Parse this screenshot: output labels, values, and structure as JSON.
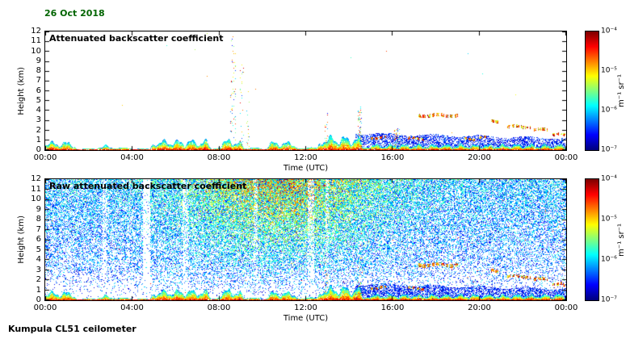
{
  "header": {
    "date": "26 Oct 2018"
  },
  "footer": {
    "instrument": "Kumpula CL51 ceilometer"
  },
  "colors": {
    "date_text": "#006400",
    "axis": "#000000",
    "background": "#ffffff",
    "colormap": "jet"
  },
  "render": {
    "seed": 1337
  },
  "chart_data": [
    {
      "type": "heatmap",
      "style": "processed",
      "title": "Attenuated backscatter coefficient",
      "xlabel": "Time (UTC)",
      "ylabel": "Height (km)",
      "x_ticks": [
        "00:00",
        "04:00",
        "08:00",
        "12:00",
        "16:00",
        "20:00",
        "00:00"
      ],
      "x_range_hours": [
        0,
        24
      ],
      "y_ticks": [
        0,
        1,
        2,
        3,
        4,
        5,
        6,
        7,
        8,
        9,
        10,
        11,
        12
      ],
      "y_range_km": [
        0,
        12
      ],
      "colorbar": {
        "scale": "log",
        "min": 1e-07,
        "max": 0.0001,
        "tick_labels": [
          "10⁻⁴",
          "10⁻⁵",
          "10⁻⁶",
          "10⁻⁷"
        ],
        "unit": "m⁻¹ sr⁻¹"
      },
      "features": {
        "base_band_km": 0.18,
        "surface_blobs": [
          [
            -0.3,
            1.5,
            0.8
          ],
          [
            2.3,
            3.1,
            0.5
          ],
          [
            4.8,
            7.7,
            0.95
          ],
          [
            7.9,
            9.2,
            1.0
          ],
          [
            10.1,
            11.7,
            0.8
          ],
          [
            12.5,
            14.7,
            1.3
          ],
          [
            14.7,
            24.3,
            0.55
          ]
        ],
        "aerosol": {
          "t_start": 14.3,
          "t_end": 24,
          "top_km": 1.7,
          "fill": 0.5
        },
        "plumes": [
          [
            8.65,
            0.25,
            11.8,
            0.1
          ],
          [
            9.05,
            0.2,
            10.0,
            0.08
          ],
          [
            9.35,
            0.15,
            6.0,
            0.08
          ],
          [
            12.95,
            0.18,
            4.3,
            0.2
          ],
          [
            14.5,
            0.2,
            4.6,
            0.3
          ],
          [
            16.2,
            0.25,
            2.2,
            0.45
          ]
        ],
        "clouds": [
          [
            17.2,
            19.0,
            3.5,
            0.35
          ],
          [
            20.55,
            20.95,
            2.9,
            0.3
          ],
          [
            21.3,
            22.35,
            2.35,
            0.3
          ],
          [
            22.5,
            23.15,
            2.05,
            0.3
          ],
          [
            23.35,
            23.8,
            1.65,
            0.3
          ],
          [
            15.0,
            15.7,
            1.25,
            0.25
          ],
          [
            16.7,
            17.5,
            1.15,
            0.25
          ],
          [
            19.3,
            19.8,
            1.1,
            0.2
          ],
          [
            20.0,
            20.4,
            1.3,
            0.22
          ],
          [
            23.85,
            24.0,
            1.45,
            0.3
          ]
        ],
        "sparse_noise": 0.00025
      }
    },
    {
      "type": "heatmap",
      "style": "raw",
      "title": "Raw attenuated backscatter coefficient",
      "xlabel": "Time (UTC)",
      "ylabel": "Height (km)",
      "x_ticks": [
        "00:00",
        "04:00",
        "08:00",
        "12:00",
        "16:00",
        "20:00",
        "00:00"
      ],
      "x_range_hours": [
        0,
        24
      ],
      "y_ticks": [
        0,
        1,
        2,
        3,
        4,
        5,
        6,
        7,
        8,
        9,
        10,
        11,
        12
      ],
      "y_range_km": [
        0,
        12
      ],
      "colorbar": {
        "scale": "log",
        "min": 1e-07,
        "max": 0.0001,
        "tick_labels": [
          "10⁻⁴",
          "10⁻⁵",
          "10⁻⁶",
          "10⁻⁷"
        ],
        "unit": "m⁻¹ sr⁻¹"
      },
      "features": {
        "base_band_km": 0.18,
        "surface_blobs": [
          [
            -0.3,
            1.5,
            0.8
          ],
          [
            2.3,
            3.1,
            0.5
          ],
          [
            4.8,
            7.7,
            0.95
          ],
          [
            7.9,
            9.2,
            1.0
          ],
          [
            10.1,
            11.7,
            0.8
          ],
          [
            12.5,
            14.7,
            1.3
          ],
          [
            14.7,
            24.3,
            0.55
          ]
        ],
        "aerosol": {
          "t_start": 14.3,
          "t_end": 24,
          "top_km": 1.6,
          "fill": 0.55
        },
        "plumes": [
          [
            12.95,
            0.18,
            4.0,
            0.18
          ],
          [
            14.5,
            0.2,
            4.2,
            0.25
          ]
        ],
        "clouds": [
          [
            17.2,
            19.0,
            3.5,
            0.35
          ],
          [
            20.55,
            20.95,
            2.9,
            0.3
          ],
          [
            21.3,
            22.35,
            2.35,
            0.3
          ],
          [
            22.5,
            23.15,
            2.05,
            0.3
          ],
          [
            23.35,
            23.8,
            1.65,
            0.3
          ],
          [
            15.0,
            15.7,
            1.25,
            0.25
          ],
          [
            16.7,
            17.5,
            1.15,
            0.25
          ],
          [
            23.85,
            24.0,
            1.45,
            0.3
          ]
        ],
        "stripes": [
          [
            2.75,
            0.18,
            0.45
          ],
          [
            4.67,
            0.3,
            0.12
          ],
          [
            6.45,
            0.25,
            0.45
          ],
          [
            9.7,
            0.2,
            0.5
          ],
          [
            12.25,
            0.3,
            0.45
          ],
          [
            13.0,
            0.15,
            0.55
          ]
        ],
        "noise": {
          "day_center": 10.8,
          "day_width": 4.6
        }
      }
    }
  ]
}
